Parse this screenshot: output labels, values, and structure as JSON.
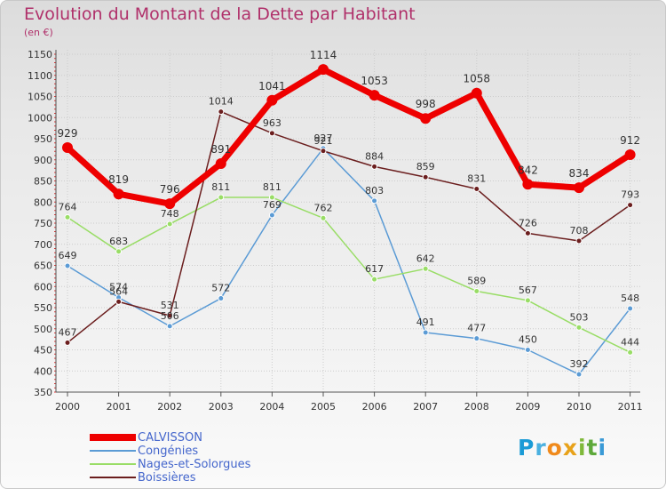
{
  "header": {
    "title": "Evolution du Montant de la Dette par Habitant",
    "subtitle": "(en €)"
  },
  "colors": {
    "title": "#b0306a",
    "legend_text": "#4466cc",
    "grid": "#cccccc",
    "axis": "#555555"
  },
  "logo": {
    "text": "Proxiti",
    "letters": [
      {
        "ch": "P",
        "color": "#1a9bd6"
      },
      {
        "ch": "r",
        "color": "#4ab0e0"
      },
      {
        "ch": "o",
        "color": "#f08a1c"
      },
      {
        "ch": "x",
        "color": "#e8a21a"
      },
      {
        "ch": "i",
        "color": "#7fb93a"
      },
      {
        "ch": "t",
        "color": "#5da83a"
      },
      {
        "ch": "i",
        "color": "#3a9ad6"
      }
    ]
  },
  "chart_data": {
    "type": "line",
    "title": "Evolution du Montant de la Dette par Habitant",
    "subtitle": "(en €)",
    "categories": [
      "2000",
      "2001",
      "2002",
      "2003",
      "2004",
      "2005",
      "2006",
      "2007",
      "2008",
      "2009",
      "2010",
      "2011"
    ],
    "ylim": [
      350,
      1150
    ],
    "yticks": [
      350,
      400,
      450,
      500,
      550,
      600,
      650,
      700,
      750,
      800,
      850,
      900,
      950,
      1000,
      1050,
      1100,
      1150
    ],
    "grid": true,
    "legend_position": "bottom-left",
    "series": [
      {
        "name": "Congénies",
        "color": "#5b9bd5",
        "width": 1.5,
        "marker": 3,
        "fontsize": 11,
        "values": [
          649,
          574,
          506,
          572,
          769,
          927,
          803,
          491,
          477,
          450,
          392,
          548
        ]
      },
      {
        "name": "Nages-et-Solorgues",
        "color": "#99dd66",
        "width": 1.5,
        "marker": 3,
        "fontsize": 11,
        "values": [
          764,
          683,
          748,
          811,
          811,
          762,
          617,
          642,
          589,
          567,
          503,
          444
        ]
      },
      {
        "name": "Boissières",
        "color": "#6b1e1e",
        "width": 1.5,
        "marker": 3,
        "fontsize": 11,
        "values": [
          467,
          564,
          531,
          1014,
          963,
          921,
          884,
          859,
          831,
          726,
          708,
          793
        ]
      },
      {
        "name": "CALVISSON",
        "color": "#ee0000",
        "width": 7,
        "marker": 6,
        "fontsize": 12,
        "values": [
          929,
          819,
          796,
          891,
          1041,
          1114,
          1053,
          998,
          1058,
          842,
          834,
          912
        ]
      }
    ]
  },
  "legend": [
    {
      "label": "CALVISSON",
      "color": "#ee0000",
      "thick": 8
    },
    {
      "label": "Congénies",
      "color": "#5b9bd5",
      "thick": 2
    },
    {
      "label": "Nages-et-Solorgues",
      "color": "#99dd66",
      "thick": 2
    },
    {
      "label": "Boissières",
      "color": "#6b1e1e",
      "thick": 2
    }
  ]
}
